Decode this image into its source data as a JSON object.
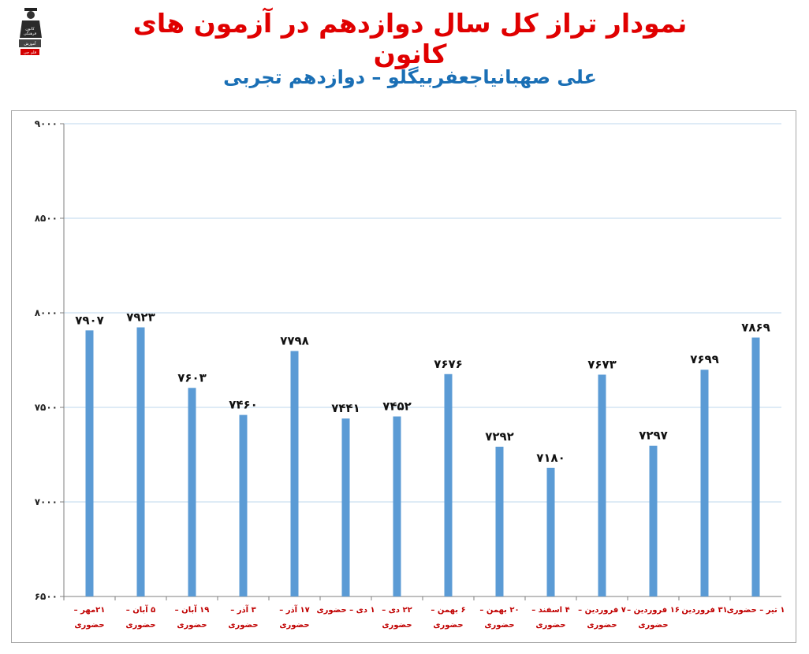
{
  "header": {
    "title": "نمودار تراز کل سال دوازدهم در آزمون های کانون",
    "subtitle": "علی صهبانیاجعفربیگلو – دوازدهم تجربی",
    "logo_text": [
      "کانون",
      "فرهنگی",
      "آموزش",
      "قلم چی"
    ]
  },
  "colors": {
    "title": "#e00000",
    "subtitle": "#1a6fb5",
    "bar": "#5b9bd5",
    "category_label": "#c00000",
    "grid": "#bdd7ee"
  },
  "chart_data": {
    "type": "bar",
    "title": "نمودار تراز کل سال دوازدهم در آزمون های کانون",
    "subtitle": "علی صهبانیاجعفربیگلو – دوازدهم تجربی",
    "categories": [
      [
        "۲۱مهر –",
        "حضوری"
      ],
      [
        "۵ آبان –",
        "حضوری"
      ],
      [
        "۱۹ آبان –",
        "حضوری"
      ],
      [
        "۳ آذر –",
        "حضوری"
      ],
      [
        "۱۷ آذر –",
        "حضوری"
      ],
      [
        "۱ دی – حضوری"
      ],
      [
        "۲۲ دی –",
        "حضوری"
      ],
      [
        "۶ بهمن –",
        "حضوری"
      ],
      [
        "۲۰ بهمن –",
        "حضوری"
      ],
      [
        "۴ اسفند –",
        "حضوری"
      ],
      [
        "۷ فروردین –",
        "حضوری"
      ],
      [
        "۱۶ فروردین –",
        "حضوری"
      ],
      [
        "۳۱ فروردین"
      ],
      [
        "۱ تیر – حضوری"
      ]
    ],
    "values": [
      7907,
      7923,
      7603,
      7460,
      7798,
      7441,
      7452,
      7676,
      7292,
      7180,
      7673,
      7297,
      7699,
      7869
    ],
    "value_labels": [
      "۷۹۰۷",
      "۷۹۲۳",
      "۷۶۰۳",
      "۷۴۶۰",
      "۷۷۹۸",
      "۷۴۴۱",
      "۷۴۵۲",
      "۷۶۷۶",
      "۷۲۹۲",
      "۷۱۸۰",
      "۷۶۷۳",
      "۷۲۹۷",
      "۷۶۹۹",
      "۷۸۶۹"
    ],
    "y_ticks": [
      6500,
      7000,
      7500,
      8000,
      8500,
      9000
    ],
    "y_tick_labels": [
      "۶۵۰۰",
      "۷۰۰۰",
      "۷۵۰۰",
      "۸۰۰۰",
      "۸۵۰۰",
      "۹۰۰۰"
    ],
    "ylim": [
      6500,
      9000
    ],
    "grid": true,
    "legend": "none"
  }
}
